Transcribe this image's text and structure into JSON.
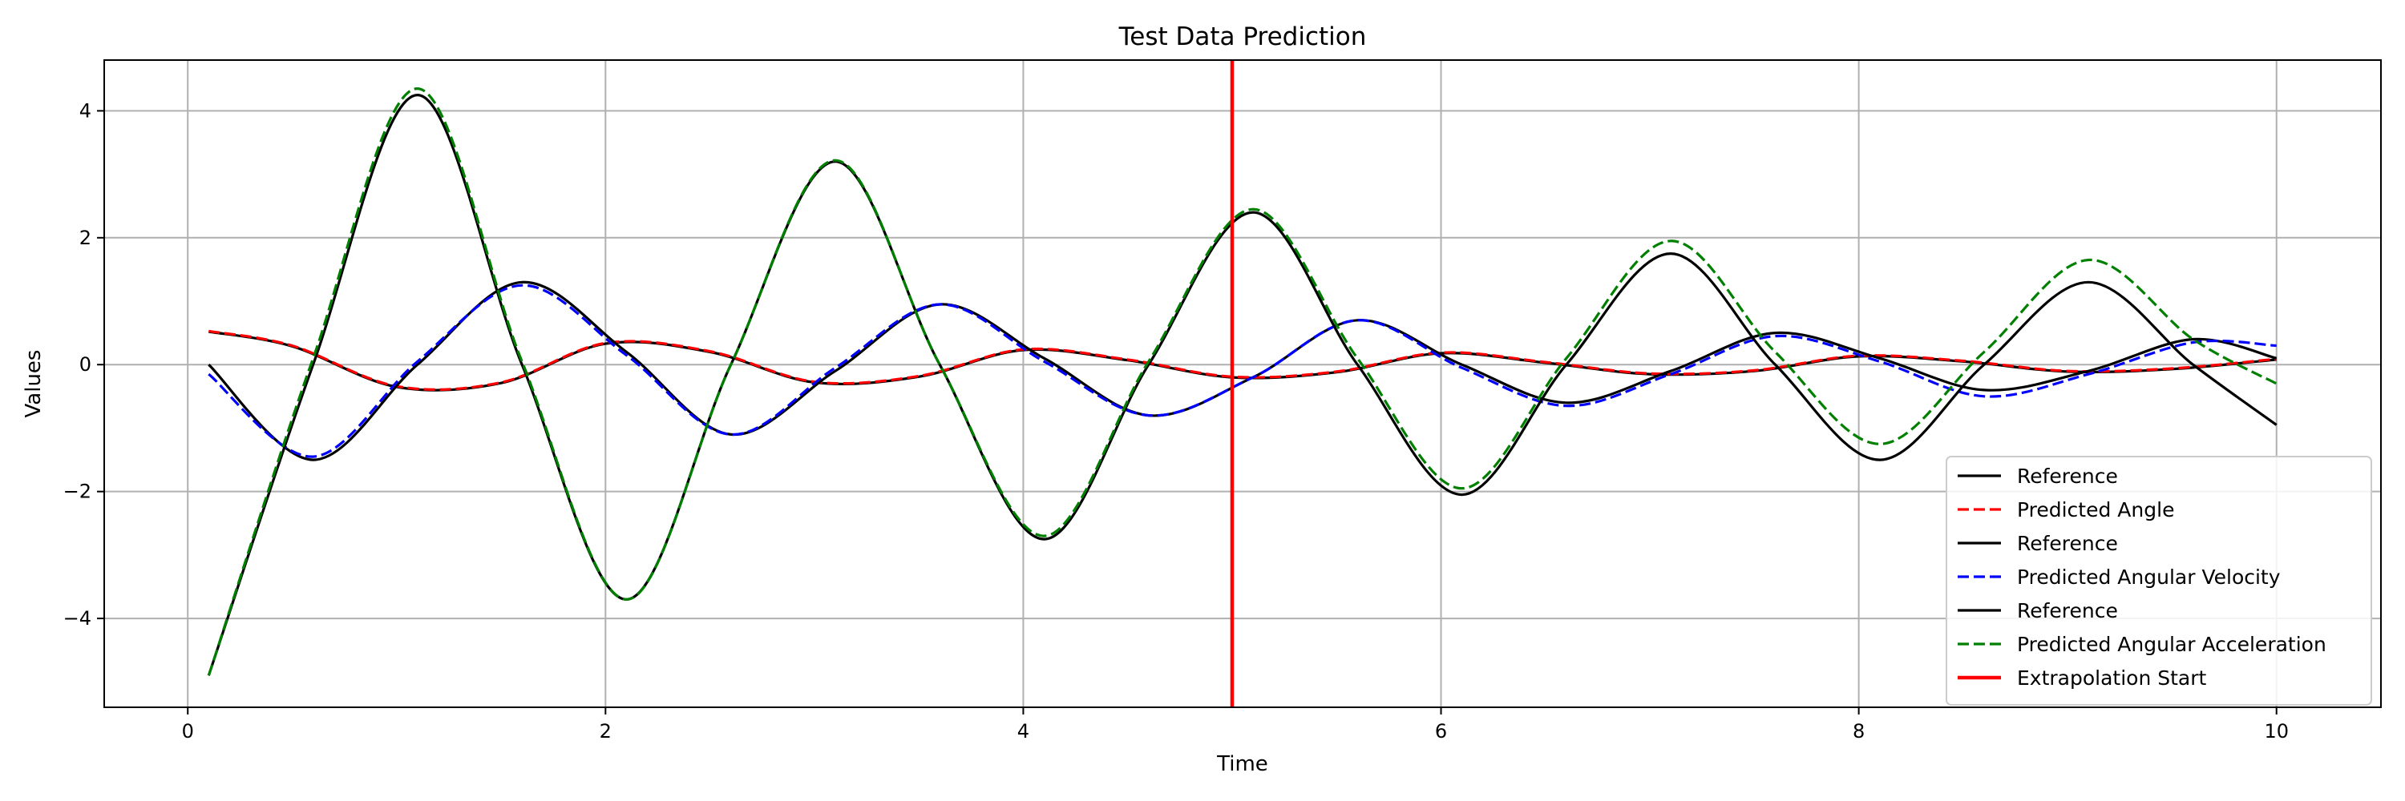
{
  "chart_data": {
    "type": "line",
    "title": "Test Data Prediction",
    "xlabel": "Time",
    "ylabel": "Values",
    "xlim": [
      -0.4,
      10.5
    ],
    "ylim": [
      -5.4,
      4.8
    ],
    "grid": true,
    "legend_position": "lower right",
    "xticks": [
      0,
      2,
      4,
      6,
      8,
      10
    ],
    "xtick_labels": [
      "0",
      "2",
      "4",
      "6",
      "8",
      "10"
    ],
    "yticks": [
      -4,
      -2,
      0,
      2,
      4
    ],
    "ytick_labels": [
      "−4",
      "−2",
      "0",
      "2",
      "4"
    ],
    "vline": {
      "x": 5.0,
      "label": "Extrapolation Start",
      "color": "#ff0000"
    },
    "series": [
      {
        "name": "Reference",
        "style": "solid",
        "color": "#000000",
        "x": [
          0.1,
          0.5,
          1.0,
          1.5,
          2.0,
          2.5,
          3.0,
          3.5,
          4.0,
          4.5,
          5.0,
          5.5,
          6.0,
          6.5,
          7.0,
          7.5,
          8.0,
          8.5,
          9.0,
          9.5,
          10.0
        ],
        "y": [
          0.52,
          0.29,
          -0.35,
          -0.29,
          0.33,
          0.2,
          -0.28,
          -0.19,
          0.23,
          0.07,
          -0.2,
          -0.12,
          0.18,
          0.03,
          -0.15,
          -0.1,
          0.13,
          0.05,
          -0.11,
          -0.07,
          0.08
        ]
      },
      {
        "name": "Predicted Angle",
        "style": "dashed",
        "color": "#ff0000",
        "x": [
          0.1,
          0.5,
          1.0,
          1.5,
          2.0,
          2.5,
          3.0,
          3.5,
          4.0,
          4.5,
          5.0,
          5.5,
          6.0,
          6.5,
          7.0,
          7.5,
          8.0,
          8.5,
          9.0,
          9.5,
          10.0
        ],
        "y": [
          0.53,
          0.3,
          -0.34,
          -0.28,
          0.34,
          0.21,
          -0.27,
          -0.18,
          0.24,
          0.08,
          -0.19,
          -0.11,
          0.19,
          0.04,
          -0.14,
          -0.09,
          0.14,
          0.06,
          -0.1,
          -0.06,
          0.09
        ]
      },
      {
        "name": "Reference",
        "style": "solid",
        "color": "#000000",
        "x": [
          0.1,
          0.6,
          1.1,
          1.6,
          2.1,
          2.6,
          3.1,
          3.6,
          4.1,
          4.6,
          5.1,
          5.6,
          6.1,
          6.6,
          7.1,
          7.6,
          8.1,
          8.6,
          9.1,
          9.6,
          10.0
        ],
        "y": [
          0.0,
          -1.5,
          0.0,
          1.3,
          0.2,
          -1.1,
          -0.1,
          0.95,
          0.1,
          -0.8,
          -0.2,
          0.7,
          0.0,
          -0.6,
          -0.1,
          0.5,
          0.1,
          -0.4,
          -0.1,
          0.4,
          0.1
        ]
      },
      {
        "name": "Predicted Angular Velocity",
        "style": "dashed",
        "color": "#0000ff",
        "x": [
          0.1,
          0.6,
          1.1,
          1.6,
          2.1,
          2.6,
          3.1,
          3.6,
          4.1,
          4.6,
          5.1,
          5.6,
          6.1,
          6.6,
          7.1,
          7.6,
          8.1,
          8.6,
          9.1,
          9.6,
          10.0
        ],
        "y": [
          -0.15,
          -1.45,
          0.05,
          1.25,
          0.15,
          -1.1,
          -0.05,
          0.95,
          0.05,
          -0.8,
          -0.2,
          0.7,
          -0.05,
          -0.65,
          -0.15,
          0.45,
          0.05,
          -0.5,
          -0.15,
          0.35,
          0.3
        ]
      },
      {
        "name": "Reference",
        "style": "solid",
        "color": "#000000",
        "x": [
          0.1,
          0.6,
          1.1,
          1.6,
          2.1,
          2.6,
          3.1,
          3.6,
          4.1,
          4.6,
          5.1,
          5.6,
          6.1,
          6.6,
          7.1,
          7.6,
          8.1,
          8.6,
          9.1,
          9.6,
          10.0
        ],
        "y": [
          -4.9,
          0.0,
          4.25,
          0.0,
          -3.7,
          0.0,
          3.2,
          0.0,
          -2.75,
          0.0,
          2.4,
          0.0,
          -2.05,
          0.0,
          1.75,
          0.0,
          -1.5,
          0.0,
          1.3,
          0.0,
          -0.95
        ]
      },
      {
        "name": "Predicted Angular Acceleration",
        "style": "dashed",
        "color": "#008000",
        "x": [
          0.1,
          0.6,
          1.1,
          1.6,
          2.1,
          2.6,
          3.1,
          3.6,
          4.1,
          4.6,
          5.1,
          5.6,
          6.1,
          6.6,
          7.1,
          7.6,
          8.1,
          8.6,
          9.1,
          9.6,
          10.0
        ],
        "y": [
          -4.9,
          0.1,
          4.35,
          0.05,
          -3.7,
          0.0,
          3.22,
          0.0,
          -2.7,
          0.05,
          2.45,
          0.1,
          -1.95,
          0.1,
          1.95,
          0.2,
          -1.25,
          0.2,
          1.65,
          0.4,
          -0.3
        ]
      }
    ]
  }
}
